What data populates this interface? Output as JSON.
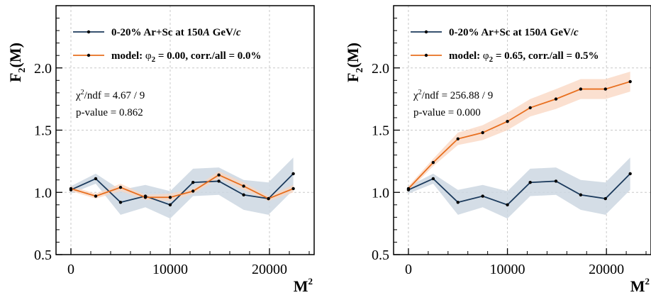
{
  "figure": {
    "ylabel_main": "F",
    "ylabel_sub": "2",
    "ylabel_tail": "(M)",
    "xlabel_main": "M",
    "xlabel_sup": "2"
  },
  "colors": {
    "data": "#1b3a5c",
    "data_band": "#cdd7e2",
    "model": "#e86f1f",
    "model_band": "#f9d6c0",
    "grid": "#c8c8c8",
    "axis": "#000000"
  },
  "chart_data": [
    {
      "type": "line",
      "xlabel": "M²",
      "ylabel": "F₂(M)",
      "xlim": [
        -1500,
        24500
      ],
      "ylim": [
        0.5,
        2.5
      ],
      "xticks": [
        0,
        10000,
        20000
      ],
      "xtick_labels": [
        "0",
        "10000",
        "20000"
      ],
      "yticks": [
        0.5,
        1.0,
        1.5,
        2.0
      ],
      "ytick_labels": [
        "0.5",
        "1.0",
        "1.5",
        "2.0"
      ],
      "grid": true,
      "legend_position": "top-left",
      "x": [
        0,
        2500,
        5000,
        7500,
        10000,
        12300,
        14900,
        17400,
        19900,
        22400
      ],
      "series": [
        {
          "name_parts": [
            "0-20% Ar+Sc at 150",
            "A",
            " GeV/",
            "c"
          ],
          "name": "0-20% Ar+Sc at 150A GeV/c",
          "values": [
            1.02,
            1.11,
            0.92,
            0.97,
            0.9,
            1.08,
            1.09,
            0.98,
            0.95,
            1.15
          ],
          "band": [
            0.03,
            0.04,
            0.1,
            0.09,
            0.11,
            0.11,
            0.11,
            0.12,
            0.13,
            0.13
          ]
        },
        {
          "name_parts": [
            "model:  ",
            "φ",
            "2",
            " = 0.00,  corr./all = 0.0%"
          ],
          "name": "model:  φ2 = 0.00,  corr./all = 0.0%",
          "values": [
            1.03,
            0.97,
            1.04,
            0.96,
            0.96,
            1.01,
            1.14,
            1.05,
            0.95,
            1.03
          ],
          "band": [
            0.02,
            0.02,
            0.03,
            0.02,
            0.03,
            0.02,
            0.03,
            0.03,
            0.02,
            0.03
          ]
        }
      ],
      "annotations": {
        "chi2_prefix": "χ",
        "chi2_sup": "2",
        "chi2_rest": "/ndf = 4.67 / 9",
        "pvalue": "p-value = 0.862"
      }
    },
    {
      "type": "line",
      "xlabel": "M²",
      "ylabel": "F₂(M)",
      "xlim": [
        -1500,
        24500
      ],
      "ylim": [
        0.5,
        2.5
      ],
      "xticks": [
        0,
        10000,
        20000
      ],
      "xtick_labels": [
        "0",
        "10000",
        "20000"
      ],
      "yticks": [
        0.5,
        1.0,
        1.5,
        2.0
      ],
      "ytick_labels": [
        "0.5",
        "1.0",
        "1.5",
        "2.0"
      ],
      "grid": true,
      "legend_position": "top-left",
      "x": [
        0,
        2500,
        5000,
        7500,
        10000,
        12300,
        14900,
        17400,
        19900,
        22400
      ],
      "series": [
        {
          "name_parts": [
            "0-20% Ar+Sc at 150",
            "A",
            " GeV/",
            "c"
          ],
          "name": "0-20% Ar+Sc at 150A GeV/c",
          "values": [
            1.02,
            1.11,
            0.92,
            0.97,
            0.9,
            1.08,
            1.09,
            0.98,
            0.95,
            1.15
          ],
          "band": [
            0.03,
            0.04,
            0.1,
            0.09,
            0.11,
            0.11,
            0.11,
            0.12,
            0.13,
            0.13
          ]
        },
        {
          "name_parts": [
            "model:  ",
            "φ",
            "2",
            " = 0.65,  corr./all = 0.5%"
          ],
          "name": "model:  φ2 = 0.65,  corr./all = 0.5%",
          "values": [
            1.03,
            1.24,
            1.43,
            1.48,
            1.57,
            1.68,
            1.75,
            1.83,
            1.83,
            1.89
          ],
          "band": [
            0.02,
            0.03,
            0.05,
            0.06,
            0.07,
            0.07,
            0.08,
            0.08,
            0.08,
            0.08
          ]
        }
      ],
      "annotations": {
        "chi2_prefix": "χ",
        "chi2_sup": "2",
        "chi2_rest": "/ndf = 256.88 / 9",
        "pvalue": "p-value = 0.000"
      }
    }
  ]
}
